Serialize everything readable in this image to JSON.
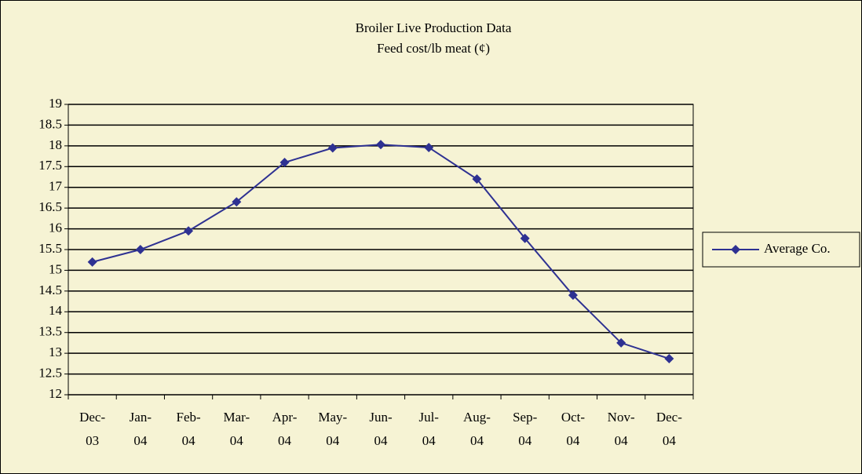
{
  "chart_data": {
    "type": "line",
    "title": "Broiler Live Production Data",
    "subtitle": "Feed cost/lb meat (¢)",
    "categories": [
      "Dec-03",
      "Jan-04",
      "Feb-04",
      "Mar-04",
      "Apr-04",
      "May-04",
      "Jun-04",
      "Jul-04",
      "Aug-04",
      "Sep-04",
      "Oct-04",
      "Nov-04",
      "Dec-04"
    ],
    "series": [
      {
        "name": "Average Co.",
        "color": "#2e3192",
        "values": [
          15.2,
          15.5,
          15.95,
          16.65,
          17.6,
          17.95,
          18.03,
          17.96,
          17.2,
          15.77,
          14.4,
          13.25,
          12.87
        ]
      }
    ],
    "ylim": [
      12,
      19
    ],
    "yticks": [
      12,
      12.5,
      13,
      13.5,
      14,
      14.5,
      15,
      15.5,
      16,
      16.5,
      17,
      17.5,
      18,
      18.5,
      19
    ],
    "grid": true,
    "legend": "right"
  }
}
